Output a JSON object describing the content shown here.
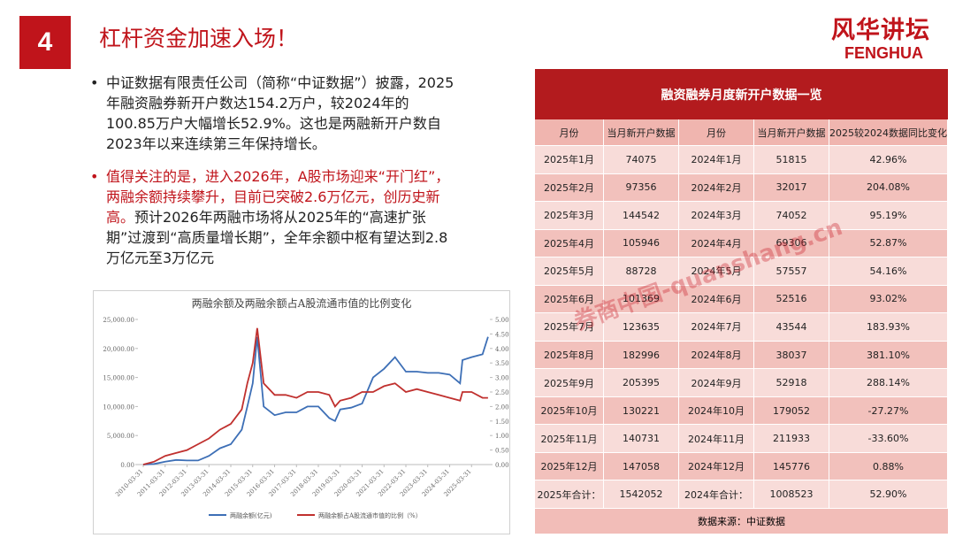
{
  "header": {
    "number": "4",
    "title": "杠杆资金加速入场！",
    "logo": "风华讲坛",
    "logo_en": "FENGHUA"
  },
  "bullets": [
    "中证数据有限责任公司（简称“中证数据”）披露，2025年融资融券新开户数达154.2万户，较2024年的100.85万户大幅增长52.9%。这也是两融新开户数自2023年以来连续第三年保持增长。",
    "值得关注的是，进入2026年，A股市场迎来“开门红”，两融余额持续攀升，目前已突破2.6万亿元，创历史新高。",
    "预计2026年两融市场将从2025年的“高速扩张期”过渡到“高质量增长期”，全年余额中枢有望达到2.8万亿元至3万亿元"
  ],
  "chart_data": {
    "type": "line",
    "title": "两融余额及两融余额占A股流通市值的比例变化",
    "x": [
      "2010-03-31",
      "2010-09-30",
      "2011-03-31",
      "2011-09-30",
      "2012-03-31",
      "2012-09-30",
      "2013-03-31",
      "2013-09-30",
      "2014-03-31",
      "2014-09-30",
      "2014-12-31",
      "2015-03-31",
      "2015-06-15",
      "2015-09-30",
      "2016-03-31",
      "2016-09-30",
      "2017-03-31",
      "2017-09-30",
      "2018-03-31",
      "2018-09-30",
      "2019-01-04",
      "2019-03-31",
      "2019-09-30",
      "2020-03-31",
      "2020-09-30",
      "2021-03-31",
      "2021-09-30",
      "2022-03-31",
      "2022-09-30",
      "2023-03-31",
      "2023-09-30",
      "2024-03-31",
      "2024-09-20",
      "2024-10-31",
      "2025-03-31",
      "2025-09-30",
      "2025-12-31"
    ],
    "series": [
      {
        "name": "两融余额(亿元)",
        "color": "#3d6fb6",
        "values": [
          0,
          100,
          500,
          800,
          700,
          700,
          1500,
          2800,
          3500,
          6000,
          10000,
          14000,
          22000,
          10000,
          8500,
          9000,
          9000,
          10000,
          10000,
          8000,
          7500,
          9500,
          9800,
          10500,
          15000,
          16500,
          18500,
          16000,
          16000,
          15800,
          15800,
          15500,
          14000,
          18000,
          18500,
          19000,
          22000
        ]
      },
      {
        "name": "两融余额占A股流通市值的比例（%）",
        "color": "#c0302e",
        "axis": "y2",
        "values": [
          0,
          0.1,
          0.3,
          0.4,
          0.5,
          0.7,
          0.9,
          1.2,
          1.4,
          1.9,
          2.8,
          3.5,
          4.7,
          2.8,
          2.4,
          2.4,
          2.3,
          2.5,
          2.5,
          2.4,
          2.0,
          2.2,
          2.3,
          2.5,
          2.5,
          2.7,
          2.8,
          2.5,
          2.6,
          2.5,
          2.4,
          2.3,
          2.2,
          2.5,
          2.5,
          2.3,
          2.3
        ]
      }
    ],
    "xlim": [
      "2010-01-01",
      "2026-01-31"
    ],
    "xticks": [
      "2010-03-31",
      "2011-03-31",
      "2012-03-31",
      "2013-03-31",
      "2014-03-31",
      "2015-03-31",
      "2016-03-31",
      "2017-03-31",
      "2018-03-31",
      "2019-03-31",
      "2020-03-31",
      "2021-03-31",
      "2022-03-31",
      "2023-03-31",
      "2024-03-31",
      "2025-03-31"
    ],
    "ylim": [
      0,
      25000
    ],
    "yticks": [
      {
        "value": 0,
        "label": "0.00"
      },
      {
        "value": 5000,
        "label": "5,000.00"
      },
      {
        "value": 10000,
        "label": "10,000.00"
      },
      {
        "value": 15000,
        "label": "15,000.00"
      },
      {
        "value": 20000,
        "label": "20,000.00"
      },
      {
        "value": 25000,
        "label": "25,000.00"
      }
    ],
    "y2lim": [
      0,
      5
    ],
    "y2ticks": [
      {
        "value": 0,
        "label": "0.00"
      },
      {
        "value": 0.5,
        "label": "0.50"
      },
      {
        "value": 1,
        "label": "1.00"
      },
      {
        "value": 1.5,
        "label": "1.50"
      },
      {
        "value": 2,
        "label": "2.00"
      },
      {
        "value": 2.5,
        "label": "2.50"
      },
      {
        "value": 3,
        "label": "3.00"
      },
      {
        "value": 3.5,
        "label": "3.50"
      },
      {
        "value": 4,
        "label": "4.00"
      },
      {
        "value": 4.5,
        "label": "4.50"
      },
      {
        "value": 5,
        "label": "5.00"
      }
    ],
    "legend": "bottom"
  },
  "table": {
    "title": "融资融券月度新开户数据一览",
    "header": [
      "月份",
      "当月新开户数据",
      "月份",
      "当月新开户数据",
      "2025较2024数据同比变化"
    ],
    "rows": [
      [
        "2025年1月",
        "74075",
        "2024年1月",
        "51815",
        "42.96%"
      ],
      [
        "2025年2月",
        "97356",
        "2024年2月",
        "32017",
        "204.08%"
      ],
      [
        "2025年3月",
        "144542",
        "2024年3月",
        "74052",
        "95.19%"
      ],
      [
        "2025年4月",
        "105946",
        "2024年4月",
        "69306",
        "52.87%"
      ],
      [
        "2025年5月",
        "88728",
        "2024年5月",
        "57557",
        "54.16%"
      ],
      [
        "2025年6月",
        "101369",
        "2024年6月",
        "52516",
        "93.02%"
      ],
      [
        "2025年7月",
        "123635",
        "2024年7月",
        "43544",
        "183.93%"
      ],
      [
        "2025年8月",
        "182996",
        "2024年8月",
        "38037",
        "381.10%"
      ],
      [
        "2025年9月",
        "205395",
        "2024年9月",
        "52918",
        "288.14%"
      ],
      [
        "2025年10月",
        "130221",
        "2024年10月",
        "179052",
        "-27.27%"
      ],
      [
        "2025年11月",
        "140731",
        "2024年11月",
        "211933",
        "-33.60%"
      ],
      [
        "2025年12月",
        "147058",
        "2024年12月",
        "145776",
        "0.88%"
      ],
      [
        "2025年合计：",
        "1542052",
        "2024年合计：",
        "1008523",
        "52.90%"
      ]
    ],
    "source": "数据来源：中证数据"
  },
  "watermark": "券商中国-quanshang.cn"
}
